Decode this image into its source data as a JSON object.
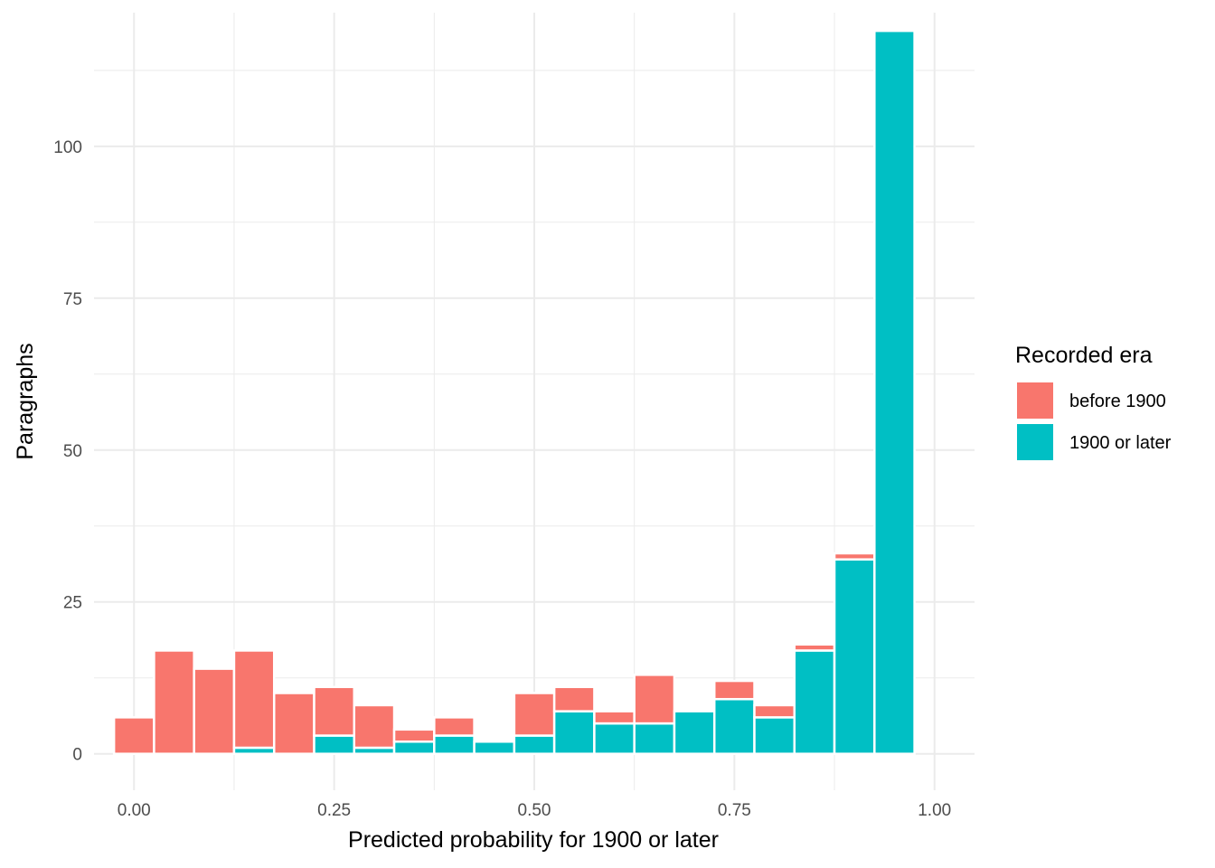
{
  "chart_data": {
    "type": "bar",
    "stacked": true,
    "xlabel": "Predicted probability for 1900 or later",
    "ylabel": "Paragraphs",
    "xlim": [
      -0.05,
      1.05
    ],
    "ylim": [
      -6,
      122
    ],
    "x_ticks": [
      0.0,
      0.25,
      0.5,
      0.75,
      1.0
    ],
    "x_tick_labels": [
      "0.00",
      "0.25",
      "0.50",
      "0.75",
      "1.00"
    ],
    "y_ticks": [
      0,
      25,
      50,
      75,
      100
    ],
    "y_tick_labels": [
      "0",
      "25",
      "50",
      "75",
      "100"
    ],
    "grid": true,
    "bin_width": 0.05,
    "x": [
      0.0,
      0.05,
      0.1,
      0.15,
      0.2,
      0.25,
      0.3,
      0.35,
      0.4,
      0.45,
      0.5,
      0.55,
      0.6,
      0.65,
      0.7,
      0.75,
      0.8,
      0.85,
      0.9,
      0.95
    ],
    "series": [
      {
        "name": "1900 or later",
        "color": "#00BFC4",
        "values": [
          0,
          0,
          0,
          1,
          0,
          3,
          1,
          2,
          3,
          2,
          3,
          7,
          5,
          5,
          7,
          9,
          6,
          17,
          32,
          119
        ]
      },
      {
        "name": "before 1900",
        "color": "#F8766D",
        "values": [
          6,
          17,
          14,
          16,
          10,
          8,
          7,
          2,
          3,
          0,
          7,
          4,
          2,
          8,
          0,
          3,
          2,
          1,
          1,
          0
        ]
      }
    ],
    "legend": {
      "title": "Recorded era",
      "position": "right",
      "entries": [
        {
          "label": "before 1900",
          "color": "#F8766D"
        },
        {
          "label": "1900 or later",
          "color": "#00BFC4"
        }
      ]
    }
  }
}
